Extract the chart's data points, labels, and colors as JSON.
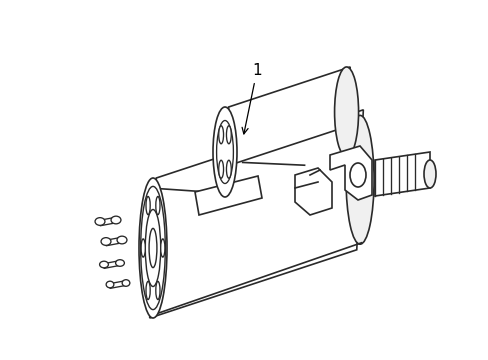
{
  "background_color": "#ffffff",
  "line_color": "#2a2a2a",
  "line_width": 1.2,
  "label": "1",
  "figsize": [
    4.89,
    3.6
  ],
  "dpi": 100,
  "xlim": [
    0,
    489
  ],
  "ylim": [
    0,
    360
  ]
}
